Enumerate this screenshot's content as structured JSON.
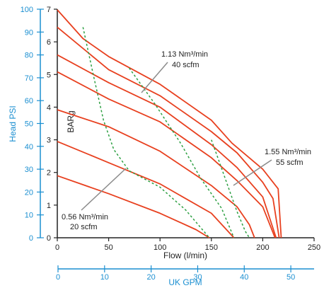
{
  "chart_data": {
    "type": "line",
    "colors": {
      "curve": "#e8401f",
      "airline": "#2ea043",
      "aux_axis": "#1b8fd1",
      "axis": "#222222",
      "pointer": "#8c8c8c"
    },
    "x_axis": {
      "label": "Flow (l/min)",
      "range": [
        0,
        250
      ],
      "ticks": [
        "0",
        "50",
        "100",
        "150",
        "200",
        "250"
      ]
    },
    "y_axis": {
      "label": "BARg",
      "range": [
        0,
        7
      ],
      "ticks": [
        "0",
        "1",
        "2",
        "3",
        "4",
        "5",
        "6",
        "7"
      ]
    },
    "y_axis_secondary": {
      "label": "Head PSI",
      "range": [
        0,
        100
      ],
      "ticks": [
        "0",
        "10",
        "20",
        "30",
        "40",
        "50",
        "60",
        "70",
        "80",
        "90",
        "100"
      ]
    },
    "x_axis_secondary": {
      "label": "UK GPM",
      "range": [
        0,
        55
      ],
      "ticks": [
        "0",
        "10",
        "20",
        "30",
        "40",
        "50"
      ]
    },
    "performance_curves": [
      {
        "points": [
          [
            0,
            6.98
          ],
          [
            25,
            6.1
          ],
          [
            50,
            5.55
          ],
          [
            100,
            4.7
          ],
          [
            150,
            3.6
          ],
          [
            170,
            2.9
          ],
          [
            200,
            2.1
          ],
          [
            215,
            1.5
          ],
          [
            218,
            0
          ]
        ]
      },
      {
        "points": [
          [
            0,
            6.45
          ],
          [
            50,
            5.15
          ],
          [
            100,
            4.35
          ],
          [
            150,
            3.25
          ],
          [
            175,
            2.6
          ],
          [
            200,
            1.7
          ],
          [
            210,
            1.2
          ],
          [
            216,
            0
          ]
        ]
      },
      {
        "points": [
          [
            0,
            5.08
          ],
          [
            50,
            4.25
          ],
          [
            100,
            3.55
          ],
          [
            150,
            2.45
          ],
          [
            175,
            1.75
          ],
          [
            200,
            0.95
          ],
          [
            212,
            0
          ]
        ]
      },
      {
        "points": [
          [
            0,
            5.6
          ],
          [
            50,
            4.75
          ],
          [
            100,
            4.0
          ],
          [
            150,
            2.85
          ],
          [
            175,
            2.15
          ],
          [
            200,
            1.25
          ],
          [
            213,
            0
          ]
        ]
      },
      {
        "points": [
          [
            0,
            3.92
          ],
          [
            50,
            3.4
          ],
          [
            100,
            2.65
          ],
          [
            150,
            1.6
          ],
          [
            175,
            0.95
          ],
          [
            187,
            0.4
          ],
          [
            192,
            0
          ]
        ]
      },
      {
        "points": [
          [
            0,
            2.95
          ],
          [
            50,
            2.3
          ],
          [
            100,
            1.65
          ],
          [
            150,
            0.75
          ],
          [
            172,
            0
          ]
        ]
      },
      {
        "points": [
          [
            0,
            1.9
          ],
          [
            50,
            1.35
          ],
          [
            100,
            0.75
          ],
          [
            135,
            0.25
          ],
          [
            148,
            0
          ]
        ]
      }
    ],
    "air_consumption_lines": [
      {
        "points": [
          [
            25,
            6.45
          ],
          [
            35,
            5.0
          ],
          [
            45,
            3.6
          ],
          [
            55,
            2.7
          ],
          [
            70,
            2.05
          ],
          [
            100,
            1.55
          ],
          [
            125,
            0.85
          ],
          [
            148,
            0
          ]
        ]
      },
      {
        "points": [
          [
            70,
            5.2
          ],
          [
            95,
            4.1
          ],
          [
            120,
            2.9
          ],
          [
            140,
            1.8
          ],
          [
            160,
            0.9
          ],
          [
            172,
            0
          ]
        ]
      },
      {
        "points": [
          [
            150,
            3.0
          ],
          [
            158,
            2.3
          ],
          [
            167,
            1.5
          ],
          [
            175,
            0.8
          ],
          [
            183,
            0.2
          ],
          [
            187,
            0
          ]
        ]
      }
    ],
    "annotations": [
      {
        "line1": "1.13 Nm³/min",
        "line2": "40 scfm"
      },
      {
        "line1": "1.55 Nm³/min",
        "line2": "55 scfm"
      },
      {
        "line1": "0.56 Nm³/min",
        "line2": "20 scfm"
      }
    ]
  }
}
